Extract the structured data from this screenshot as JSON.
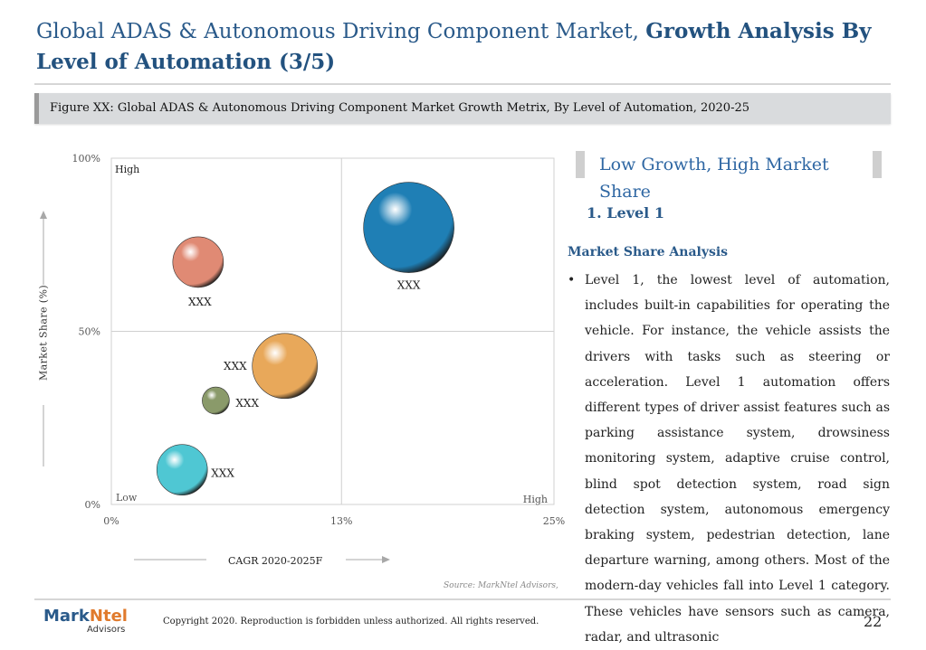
{
  "title": {
    "part1": "Global ADAS & Autonomous Driving Component Market, ",
    "part2": "Growth Analysis By Level of Automation (3/5)"
  },
  "figure_caption": "Figure XX: Global ADAS & Autonomous Driving Component Market Growth Metrix, By Level of Automation, 2020-25",
  "chart_data": {
    "type": "scatter",
    "subtype": "bubble",
    "x_label": "CAGR 2020-2025F",
    "y_label": "Market Share (%)",
    "x_ticks": [
      "0%",
      "13%",
      "25%"
    ],
    "y_ticks": [
      "100%",
      "50%",
      "0%"
    ],
    "xlim": [
      0,
      25
    ],
    "ylim": [
      0,
      100
    ],
    "grid": "quadrant lines at 13% CAGR and 50% share",
    "quadrant_labels": {
      "top_left": "High",
      "bottom_left": "Low",
      "bottom_right": "High"
    },
    "points": [
      {
        "label": "XXX",
        "x": 16.8,
        "y": 80,
        "size": 50,
        "color": "#1f7fb5"
      },
      {
        "label": "XXX",
        "x": 4.9,
        "y": 70,
        "size": 28,
        "color": "#e08a74"
      },
      {
        "label": "XXX",
        "x": 9.8,
        "y": 40,
        "size": 36,
        "color": "#e8a85a"
      },
      {
        "label": "XXX",
        "x": 5.9,
        "y": 30,
        "size": 15,
        "color": "#8a9a6a"
      },
      {
        "label": "XXX",
        "x": 4.0,
        "y": 10,
        "size": 28,
        "color": "#4fc7d3"
      }
    ]
  },
  "source": "Source: MarkNtel Advisors,",
  "right_panel": {
    "header": "Low Growth, High Market Share",
    "level_heading": "1. Level 1",
    "section_heading": "Market Share Analysis",
    "bullet": "•",
    "paragraph": "Level 1, the lowest level of automation, includes built-in capabilities for operating the vehicle. For instance, the vehicle assists the drivers with tasks such as steering or acceleration. Level 1 automation offers different types of driver assist features such as parking assistance system, drowsiness monitoring system, adaptive cruise control, blind spot detection system, road sign detection system, autonomous emergency braking system, pedestrian detection, lane departure warning, among others. Most of the modern-day vehicles fall into Level 1 category. These vehicles have sensors such as camera, radar, and ultrasonic"
  },
  "footer": {
    "logo_main": "Mark",
    "logo_accent": "Ntel",
    "logo_sub": "Advisors",
    "copyright": "Copyright 2020. Reproduction is forbidden unless authorized. All rights reserved.",
    "page_number": "22"
  }
}
